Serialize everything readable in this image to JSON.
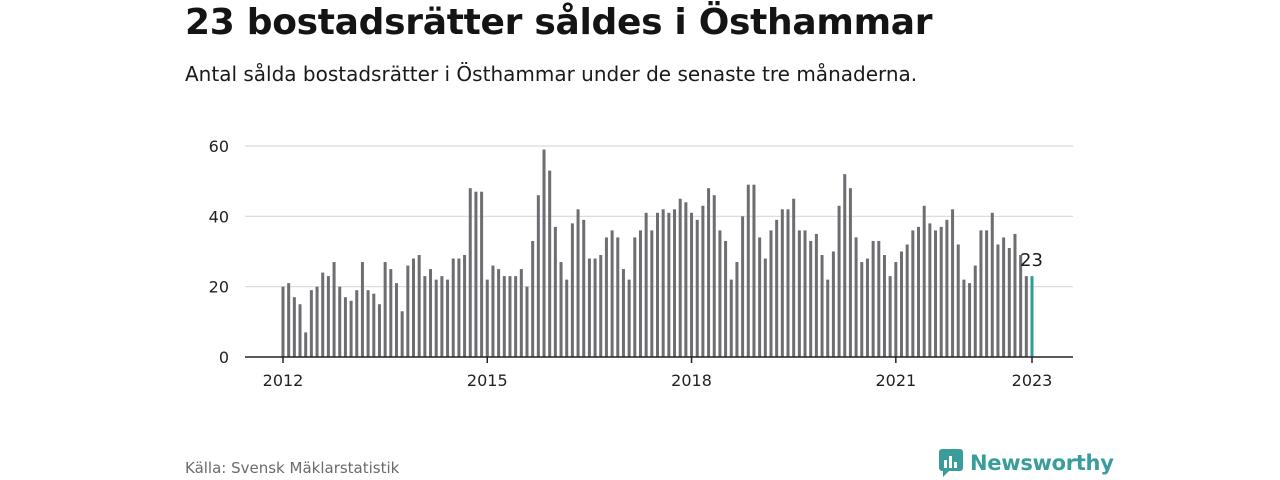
{
  "header": {
    "title": "23 bostadsrätter såldes i Östhammar",
    "subtitle": "Antal sålda bostadsrätter i Östhammar under de senaste tre månaderna."
  },
  "footer": {
    "source": "Källa: Svensk Mäklarstatistik",
    "brand": "Newsworthy"
  },
  "colors": {
    "bar": "#6d6d72",
    "highlight": "#2e9c97",
    "grid": "#d9d9d9",
    "axis": "#222222",
    "brand": "#3a9d9b"
  },
  "chart_data": {
    "type": "bar",
    "title": "23 bostadsrätter såldes i Östhammar",
    "subtitle": "Antal sålda bostadsrätter i Östhammar under de senaste tre månaderna.",
    "xlabel": "",
    "ylabel": "",
    "ylim": [
      0,
      60
    ],
    "yticks": [
      0,
      20,
      40,
      60
    ],
    "xticks": [
      "2012",
      "2015",
      "2018",
      "2021",
      "2023"
    ],
    "x_start": "2012-01",
    "x_end": "2023-01",
    "grid": true,
    "highlight_index": 132,
    "highlight_label": "23",
    "values": [
      20,
      21,
      17,
      15,
      7,
      19,
      20,
      24,
      23,
      27,
      20,
      17,
      16,
      19,
      27,
      19,
      18,
      15,
      27,
      25,
      21,
      13,
      26,
      28,
      29,
      23,
      25,
      22,
      23,
      22,
      28,
      28,
      29,
      48,
      47,
      47,
      22,
      26,
      25,
      23,
      23,
      23,
      25,
      20,
      33,
      46,
      59,
      53,
      37,
      27,
      22,
      38,
      42,
      39,
      28,
      28,
      29,
      34,
      36,
      34,
      25,
      22,
      34,
      36,
      41,
      36,
      41,
      42,
      41,
      42,
      45,
      44,
      41,
      39,
      43,
      48,
      46,
      36,
      33,
      22,
      27,
      40,
      49,
      49,
      34,
      28,
      36,
      39,
      42,
      42,
      45,
      36,
      36,
      33,
      35,
      29,
      22,
      30,
      43,
      52,
      48,
      34,
      27,
      28,
      33,
      33,
      29,
      23,
      27,
      30,
      32,
      36,
      37,
      43,
      38,
      36,
      37,
      39,
      42,
      32,
      22,
      21,
      26,
      36,
      36,
      41,
      32,
      34,
      31,
      35,
      29,
      23,
      23
    ]
  }
}
